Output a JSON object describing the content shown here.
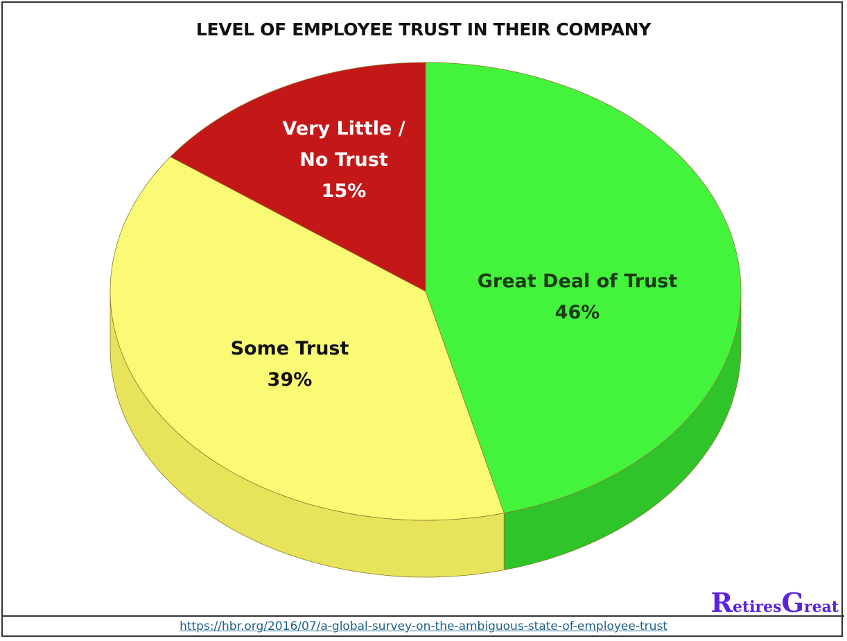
{
  "chart_data": {
    "type": "pie",
    "style": "3d",
    "title": "LEVEL OF EMPLOYEE TRUST IN THEIR COMPANY",
    "slices": [
      {
        "label": "Great Deal of Trust",
        "value": 46,
        "value_label": "46%",
        "color": "#44f43c",
        "side_color": "#2fc42a",
        "text_color": "#1a3b14"
      },
      {
        "label": "Some Trust",
        "value": 39,
        "value_label": "39%",
        "color": "#fbfa74",
        "side_color": "#e7e35a",
        "text_color": "#111111"
      },
      {
        "label": "Very Little / No Trust",
        "label_lines": [
          "Very Little /",
          "No Trust"
        ],
        "value": 15,
        "value_label": "15%",
        "color": "#c41818",
        "side_color": "#991010",
        "text_color": "#ffffff"
      }
    ],
    "start_angle": "12 o'clock",
    "direction": "clockwise",
    "legend": "none"
  },
  "source_url": "https://hbr.org/2016/07/a-global-survey-on-the-ambiguous-state-of-employee-trust",
  "logo": {
    "text": "RetiresGreat",
    "first": "R",
    "part1": "etires",
    "second": "G",
    "part2": "reat",
    "color": "#5a22e0"
  }
}
